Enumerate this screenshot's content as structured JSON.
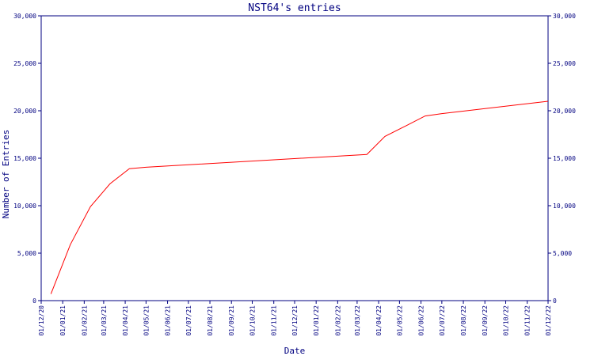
{
  "chart_data": {
    "type": "line",
    "title": "NST64's entries",
    "xlabel": "Date",
    "ylabel": "Number of Entries",
    "ylim": [
      0,
      30000
    ],
    "y_ticks": [
      0,
      5000,
      10000,
      15000,
      20000,
      25000,
      30000
    ],
    "y_tick_labels": [
      "0",
      "5,000",
      "10,000",
      "15,000",
      "20,000",
      "25,000",
      "30,000"
    ],
    "x_range": [
      "2020-12-01",
      "2022-12-01"
    ],
    "x_ticks": [
      "2020-12-01",
      "2021-01-01",
      "2021-02-01",
      "2021-03-01",
      "2021-04-01",
      "2021-05-01",
      "2021-06-01",
      "2021-07-01",
      "2021-08-01",
      "2021-09-01",
      "2021-10-01",
      "2021-11-01",
      "2021-12-01",
      "2022-01-01",
      "2022-02-01",
      "2022-03-01",
      "2022-04-01",
      "2022-05-01",
      "2022-06-01",
      "2022-07-01",
      "2022-08-01",
      "2022-09-01",
      "2022-10-01",
      "2022-11-01",
      "2022-12-01"
    ],
    "x_tick_labels": [
      "01/12/20",
      "01/01/21",
      "01/02/21",
      "01/03/21",
      "01/04/21",
      "01/05/21",
      "01/06/21",
      "01/07/21",
      "01/08/21",
      "01/09/21",
      "01/10/21",
      "01/11/21",
      "01/12/21",
      "01/01/22",
      "01/02/22",
      "01/03/22",
      "01/04/22",
      "01/05/22",
      "01/06/22",
      "01/07/22",
      "01/08/22",
      "01/09/22",
      "01/10/22",
      "01/11/22",
      "01/12/22"
    ],
    "grid": false,
    "series": [
      {
        "color": "#ff0000",
        "points": [
          {
            "x": "2020-12-15",
            "y": 700
          },
          {
            "x": "2021-01-12",
            "y": 5900
          },
          {
            "x": "2021-02-10",
            "y": 9900
          },
          {
            "x": "2021-03-10",
            "y": 12300
          },
          {
            "x": "2021-04-07",
            "y": 13900
          },
          {
            "x": "2021-05-01",
            "y": 14050
          },
          {
            "x": "2022-03-15",
            "y": 15400
          },
          {
            "x": "2022-04-10",
            "y": 17300
          },
          {
            "x": "2022-05-10",
            "y": 18400
          },
          {
            "x": "2022-06-07",
            "y": 19450
          },
          {
            "x": "2022-07-01",
            "y": 19700
          },
          {
            "x": "2022-12-01",
            "y": 21000
          }
        ]
      }
    ]
  }
}
